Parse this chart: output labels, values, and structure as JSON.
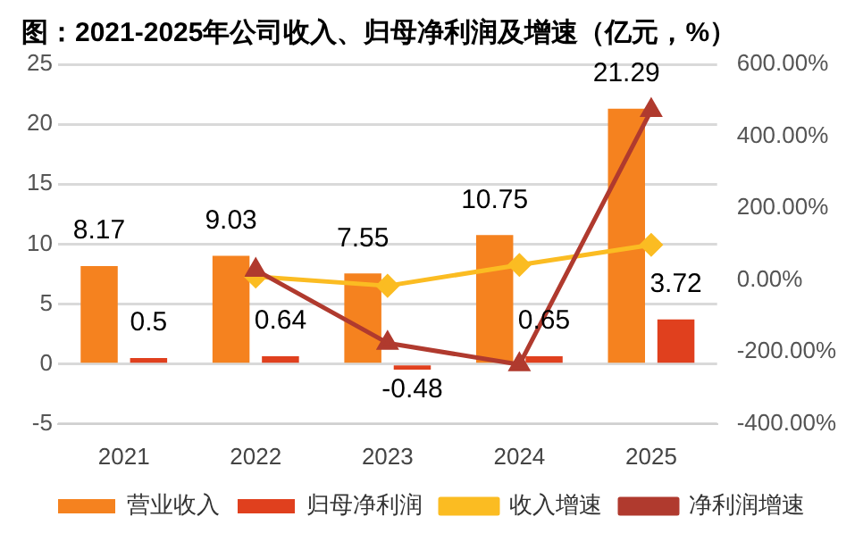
{
  "chart_data": {
    "type": "bar",
    "title": "图：2021-2025年公司收入、归母净利润及增速（亿元，%）",
    "categories": [
      "2021",
      "2022",
      "2023",
      "2024",
      "2025"
    ],
    "series": [
      {
        "name": "营业收入",
        "color": "#f5821f",
        "values": [
          8.17,
          9.03,
          7.55,
          10.75,
          21.29
        ],
        "value_labels": [
          "8.17",
          "9.03",
          "7.55",
          "10.75",
          "21.29"
        ]
      },
      {
        "name": "归母净利润",
        "color": "#e0401e",
        "values": [
          0.5,
          0.64,
          -0.48,
          0.65,
          3.72
        ],
        "value_labels": [
          "0.5",
          "0.64",
          "-0.48",
          "0.65",
          "3.72"
        ]
      },
      {
        "name": "收入增速",
        "type": "line",
        "axis": "y2",
        "color": "#fbbc22",
        "marker": "diamond",
        "values": [
          null,
          10,
          -16,
          42,
          98
        ]
      },
      {
        "name": "净利润增速",
        "type": "line",
        "axis": "y2",
        "color": "#b03a2e",
        "marker": "triangle",
        "values": [
          null,
          28,
          -175,
          -235,
          472
        ]
      }
    ],
    "ylim": [
      -5,
      25
    ],
    "yticks": [
      -5,
      0,
      5,
      10,
      15,
      20,
      25
    ],
    "y2lim": [
      -400,
      600
    ],
    "y2ticks": [
      {
        "value": -400,
        "label": "-400.00%"
      },
      {
        "value": -200,
        "label": "-200.00%"
      },
      {
        "value": 0,
        "label": "0.00%"
      },
      {
        "value": 200,
        "label": "200.00%"
      },
      {
        "value": 400,
        "label": "400.00%"
      },
      {
        "value": 600,
        "label": "600.00%"
      }
    ],
    "grid": "y",
    "legend": "bottom"
  }
}
